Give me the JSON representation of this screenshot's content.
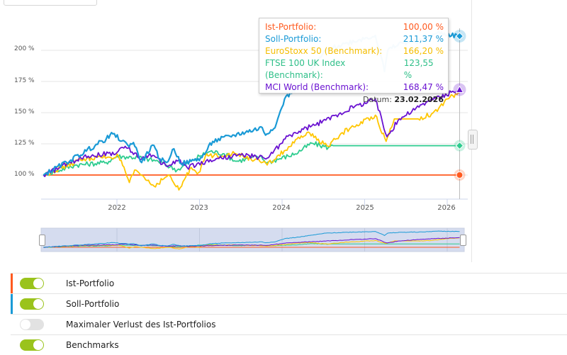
{
  "colors": {
    "ist": "#ff5a1f",
    "soll": "#1a9ad6",
    "eurostoxx": "#ffc600",
    "ftse": "#2ecc8f",
    "mci": "#6a12d1"
  },
  "chart": {
    "y_ticks": [
      "100 %",
      "125 %",
      "150 %",
      "175 %",
      "200 %"
    ],
    "x_ticks": [
      "2022",
      "2023",
      "2024",
      "2025",
      "2026"
    ]
  },
  "tooltip": {
    "rows": [
      {
        "label": "Ist-Portfolio:",
        "value": "100,00 %"
      },
      {
        "label": "Soll-Portfolio:",
        "value": "211,37 %"
      },
      {
        "label": "EuroStoxx 50 (Benchmark):",
        "value": "166,20 %"
      },
      {
        "label": "FTSE 100 UK Index (Benchmark):",
        "value": "123,55 %"
      },
      {
        "label": "MCI World (Benchmark):",
        "value": "168,47 %"
      }
    ],
    "date_label": "Datum:",
    "date_value": "23.02.2026"
  },
  "legend": [
    {
      "label": "Ist-Portfolio",
      "on": true
    },
    {
      "label": "Soll-Portfolio",
      "on": true
    },
    {
      "label": "Maximaler Verlust des Ist-Portfolios",
      "on": false
    },
    {
      "label": "Benchmarks",
      "on": true
    }
  ],
  "chart_data": {
    "type": "line",
    "x_unit": "year",
    "ylabel": "%",
    "ylim": [
      85,
      215
    ],
    "xlim": [
      2021.11,
      2026.15
    ],
    "series": [
      {
        "name": "Ist-Portfolio",
        "key": "ist",
        "points": [
          [
            2021.11,
            100
          ],
          [
            2026.15,
            100
          ]
        ]
      },
      {
        "name": "Soll-Portfolio",
        "key": "soll",
        "points": [
          [
            2021.11,
            100
          ],
          [
            2021.44,
            112
          ],
          [
            2021.87,
            129
          ],
          [
            2021.95,
            133
          ],
          [
            2022.13,
            124
          ],
          [
            2022.2,
            126
          ],
          [
            2022.3,
            110
          ],
          [
            2022.43,
            124
          ],
          [
            2022.52,
            113
          ],
          [
            2022.6,
            110
          ],
          [
            2022.69,
            121
          ],
          [
            2022.78,
            109
          ],
          [
            2022.9,
            111
          ],
          [
            2023.03,
            114
          ],
          [
            2023.16,
            127
          ],
          [
            2023.42,
            132
          ],
          [
            2023.76,
            138
          ],
          [
            2023.8,
            132
          ],
          [
            2023.93,
            141
          ],
          [
            2024.03,
            161
          ],
          [
            2024.2,
            172
          ],
          [
            2024.37,
            186
          ],
          [
            2024.53,
            200
          ],
          [
            2024.79,
            206
          ],
          [
            2025.13,
            212
          ],
          [
            2025.2,
            195
          ],
          [
            2025.24,
            183
          ],
          [
            2025.28,
            200
          ],
          [
            2025.45,
            206
          ],
          [
            2025.7,
            208
          ],
          [
            2025.88,
            214
          ],
          [
            2026.15,
            211.37
          ]
        ]
      },
      {
        "name": "EuroStoxx 50 (Benchmark)",
        "key": "eurostoxx",
        "points": [
          [
            2021.11,
            100
          ],
          [
            2021.6,
            113
          ],
          [
            2022.02,
            115
          ],
          [
            2022.15,
            94
          ],
          [
            2022.23,
            104
          ],
          [
            2022.45,
            91
          ],
          [
            2022.62,
            100
          ],
          [
            2022.75,
            88
          ],
          [
            2022.9,
            106
          ],
          [
            2022.99,
            102
          ],
          [
            2023.07,
            115
          ],
          [
            2023.44,
            117
          ],
          [
            2023.73,
            111
          ],
          [
            2023.82,
            108
          ],
          [
            2024.3,
            134
          ],
          [
            2024.56,
            123
          ],
          [
            2024.73,
            134
          ],
          [
            2025.13,
            148
          ],
          [
            2025.26,
            127
          ],
          [
            2025.36,
            145
          ],
          [
            2025.65,
            145
          ],
          [
            2025.88,
            151
          ],
          [
            2026.0,
            161
          ],
          [
            2026.15,
            166.2
          ]
        ]
      },
      {
        "name": "FTSE 100 UK Index (Benchmark)",
        "key": "ftse",
        "points": [
          [
            2021.11,
            100
          ],
          [
            2021.5,
            108
          ],
          [
            2021.87,
            110
          ],
          [
            2022.0,
            115
          ],
          [
            2022.27,
            114
          ],
          [
            2022.5,
            111
          ],
          [
            2022.73,
            104
          ],
          [
            2023.0,
            115
          ],
          [
            2023.13,
            119
          ],
          [
            2023.3,
            117
          ],
          [
            2023.44,
            111
          ],
          [
            2023.73,
            115
          ],
          [
            2023.82,
            110
          ],
          [
            2024.16,
            117
          ],
          [
            2024.36,
            125.5
          ],
          [
            2024.56,
            122
          ],
          [
            2024.62,
            123.55
          ],
          [
            2026.15,
            123.55
          ]
        ]
      },
      {
        "name": "MCI World (Benchmark)",
        "key": "mci",
        "points": [
          [
            2021.11,
            100
          ],
          [
            2021.6,
            115
          ],
          [
            2022.0,
            118
          ],
          [
            2022.1,
            123
          ],
          [
            2022.3,
            113
          ],
          [
            2022.4,
            117
          ],
          [
            2022.6,
            107
          ],
          [
            2022.75,
            112
          ],
          [
            2022.85,
            106
          ],
          [
            2023.2,
            113
          ],
          [
            2023.5,
            116
          ],
          [
            2023.82,
            113.6
          ],
          [
            2024.07,
            131
          ],
          [
            2024.53,
            144
          ],
          [
            2024.88,
            155
          ],
          [
            2025.13,
            160.8
          ],
          [
            2025.27,
            130.7
          ],
          [
            2025.42,
            145
          ],
          [
            2025.76,
            159
          ],
          [
            2026.15,
            168.47
          ]
        ]
      }
    ]
  }
}
